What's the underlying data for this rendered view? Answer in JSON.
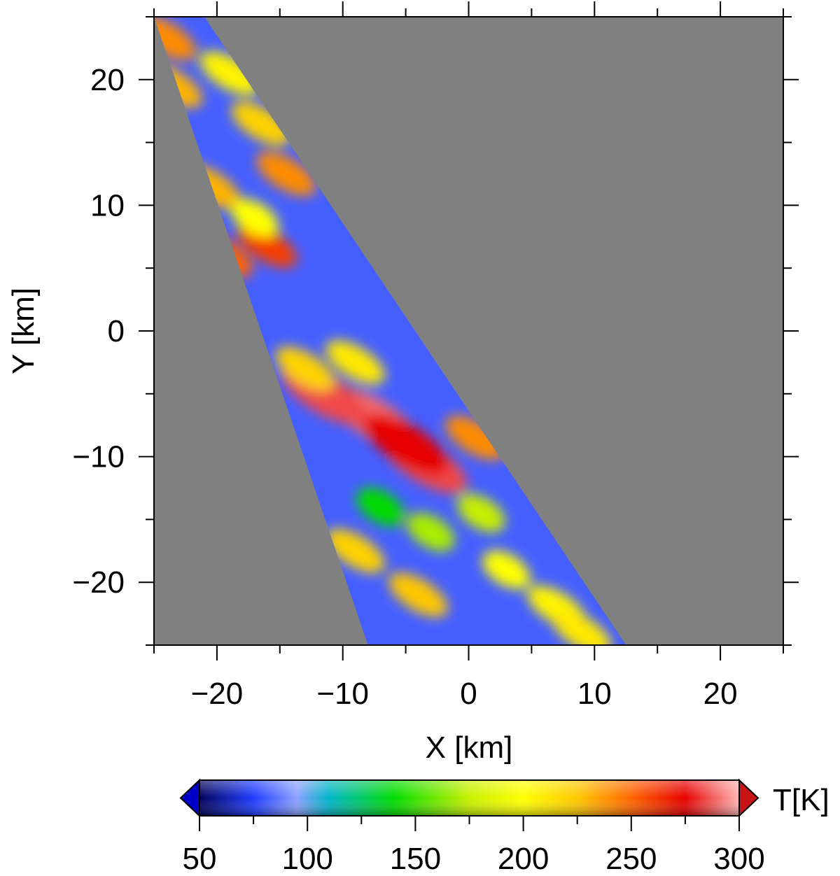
{
  "chart_data": [
    {
      "type": "heatmap",
      "title": "",
      "xlabel": "X [km]",
      "ylabel": "Y [km]",
      "xlim": [
        -25,
        25
      ],
      "ylim": [
        -25,
        25
      ],
      "x_major_ticks": [
        -20,
        -10,
        0,
        10,
        20
      ],
      "y_major_ticks": [
        -20,
        -10,
        0,
        10,
        20
      ],
      "x_minor_step": 5,
      "y_minor_step": 5,
      "x_tick_labels": [
        "−20",
        "−10",
        "0",
        "10",
        "20"
      ],
      "y_tick_labels": [
        "−20",
        "−10",
        "0",
        "10",
        "20"
      ],
      "background_color": "#808080",
      "colorbar_label": "T[K]",
      "value_range": [
        50,
        300
      ],
      "swath_corners": [
        [
          -25,
          25
        ],
        [
          -21,
          25
        ],
        [
          12.5,
          -25
        ],
        [
          -8,
          -25
        ]
      ],
      "features": [
        {
          "x": -7.5,
          "y": -7.0,
          "value": 290
        },
        {
          "x": -11.5,
          "y": -5.0,
          "value": 285
        },
        {
          "x": -3.5,
          "y": -10.5,
          "value": 285
        },
        {
          "x": -5.0,
          "y": -9.0,
          "value": 275
        },
        {
          "x": 0.5,
          "y": -8.5,
          "value": 240
        },
        {
          "x": -13.0,
          "y": -3.0,
          "value": 220
        },
        {
          "x": -9.0,
          "y": -2.5,
          "value": 210
        },
        {
          "x": -7.0,
          "y": -14.0,
          "value": 140
        },
        {
          "x": -3.0,
          "y": -16.0,
          "value": 170
        },
        {
          "x": -9.0,
          "y": -17.5,
          "value": 220
        },
        {
          "x": -4.0,
          "y": -21.0,
          "value": 225
        },
        {
          "x": 3.0,
          "y": -19.0,
          "value": 200
        },
        {
          "x": 7.0,
          "y": -22.0,
          "value": 205
        },
        {
          "x": 9.0,
          "y": -24.0,
          "value": 210
        },
        {
          "x": 1.0,
          "y": -14.5,
          "value": 175
        },
        {
          "x": -19.5,
          "y": 6.0,
          "value": 250
        },
        {
          "x": -16.0,
          "y": 6.8,
          "value": 260
        },
        {
          "x": -20.5,
          "y": 11.5,
          "value": 230
        },
        {
          "x": -14.5,
          "y": 12.5,
          "value": 240
        },
        {
          "x": -17.0,
          "y": 9.0,
          "value": 200
        },
        {
          "x": -24.0,
          "y": 23.3,
          "value": 240
        },
        {
          "x": -23.5,
          "y": 19.5,
          "value": 230
        },
        {
          "x": -16.5,
          "y": 16.5,
          "value": 220
        },
        {
          "x": -19.0,
          "y": 20.5,
          "value": 205
        }
      ]
    },
    {
      "type": "colorbar",
      "label": "T[K]",
      "range": [
        50,
        300
      ],
      "ticks": [
        50,
        100,
        150,
        200,
        250,
        300
      ],
      "tick_labels": [
        "50",
        "100",
        "150",
        "200",
        "250",
        "300"
      ],
      "minor_step": 25,
      "extend": "both",
      "under_color": "#0000c8",
      "over_color": "#c81414",
      "color_stops": [
        {
          "value": 50,
          "color": "#00005a"
        },
        {
          "value": 75,
          "color": "#1e3cff"
        },
        {
          "value": 95,
          "color": "#8ca0ff"
        },
        {
          "value": 110,
          "color": "#00b4c8"
        },
        {
          "value": 140,
          "color": "#00dc00"
        },
        {
          "value": 175,
          "color": "#c8f000"
        },
        {
          "value": 200,
          "color": "#ffff00"
        },
        {
          "value": 225,
          "color": "#ffc800"
        },
        {
          "value": 250,
          "color": "#ff6400"
        },
        {
          "value": 275,
          "color": "#e60000"
        },
        {
          "value": 300,
          "color": "#ffb4b4"
        }
      ]
    }
  ]
}
